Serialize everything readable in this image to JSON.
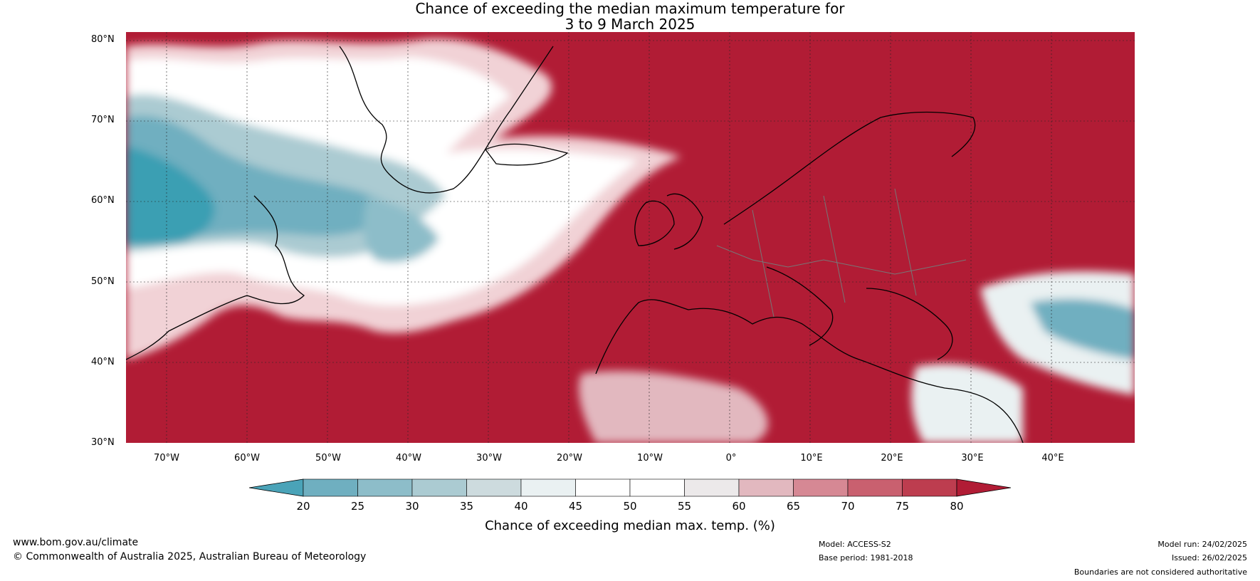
{
  "title": {
    "line1": "Chance of exceeding the median maximum temperature for",
    "line2": "3 to 9 March 2025"
  },
  "map": {
    "latitude_labels": [
      "80°N",
      "70°N",
      "60°N",
      "50°N",
      "40°N",
      "30°N"
    ],
    "longitude_labels": [
      "70°W",
      "60°W",
      "50°W",
      "40°W",
      "30°W",
      "20°W",
      "10°W",
      "0°",
      "10°E",
      "20°E",
      "30°E",
      "40°E"
    ],
    "colors": {
      "high": "#b11c35",
      "low": "#3a9fb3",
      "neutral": "#ffffff"
    }
  },
  "legend": {
    "ticks": [
      "20",
      "25",
      "30",
      "35",
      "40",
      "45",
      "50",
      "55",
      "60",
      "65",
      "70",
      "75",
      "80"
    ],
    "colors": [
      "#4aa3b8",
      "#6fafc0",
      "#8dbdc9",
      "#abcbd2",
      "#cddbde",
      "#eaf1f2",
      "#ffffff",
      "#ffffff",
      "#ece9ea",
      "#e2b8bf",
      "#d68894",
      "#c9606f",
      "#bd3d4f",
      "#b11c35"
    ],
    "label": "Chance of exceeding median max. temp. (%)"
  },
  "footer": {
    "site": "www.bom.gov.au/climate",
    "copyright": "© Commonwealth of Australia 2025, Australian Bureau of Meteorology",
    "model": "Model: ACCESS-S2",
    "base_period": "Base period: 1981-2018",
    "model_run": "Model run: 24/02/2025",
    "issued": "Issued: 26/02/2025",
    "disclaimer": "Boundaries are not considered authoritative"
  }
}
